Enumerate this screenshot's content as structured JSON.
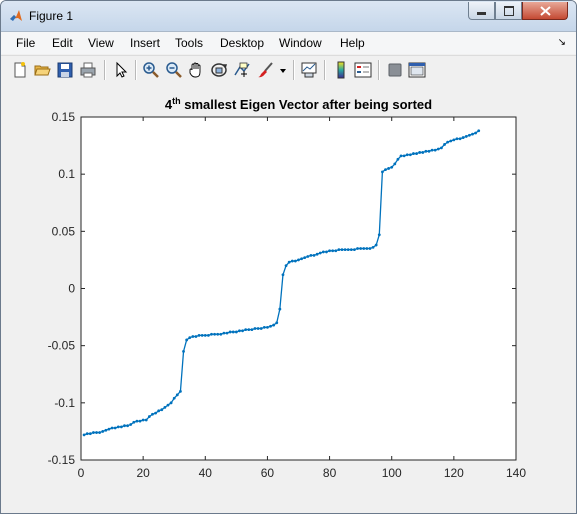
{
  "window": {
    "title": "Figure 1"
  },
  "menu": [
    "File",
    "Edit",
    "View",
    "Insert",
    "Tools",
    "Desktop",
    "Window",
    "Help"
  ],
  "toolbar": {
    "icons": [
      "new-figure-icon",
      "open-file-icon",
      "save-icon",
      "print-icon",
      "pointer-icon",
      "zoom-in-icon",
      "zoom-out-icon",
      "pan-hand-icon",
      "rotate-3d-icon",
      "data-cursor-icon",
      "brush-icon",
      "brush-dropdown-icon",
      "link-plot-icon",
      "colorbar-icon",
      "legend-icon",
      "hide-plot-tools-icon",
      "show-plot-tools-icon"
    ]
  },
  "chart_data": {
    "type": "line",
    "title_main": "4",
    "title_sup": "th",
    "title_rest": " smallest Eigen Vector after being sorted",
    "xlim": [
      0,
      140
    ],
    "ylim": [
      -0.15,
      0.15
    ],
    "xticks": [
      "0",
      "20",
      "40",
      "60",
      "80",
      "100",
      "120",
      "140"
    ],
    "yticks": [
      "0.15",
      "0.1",
      "0.05",
      "0",
      "-0.05",
      "-0.1",
      "-0.15"
    ],
    "xtick_values": [
      0,
      20,
      40,
      60,
      80,
      100,
      120,
      140
    ],
    "ytick_values": [
      0.15,
      0.1,
      0.05,
      0,
      -0.05,
      -0.1,
      -0.15
    ],
    "line_color": "#0072bd",
    "x": [
      1,
      2,
      3,
      4,
      5,
      6,
      7,
      8,
      9,
      10,
      11,
      12,
      13,
      14,
      15,
      16,
      17,
      18,
      19,
      20,
      21,
      22,
      23,
      24,
      25,
      26,
      27,
      28,
      29,
      30,
      31,
      32,
      33,
      34,
      35,
      36,
      37,
      38,
      39,
      40,
      41,
      42,
      43,
      44,
      45,
      46,
      47,
      48,
      49,
      50,
      51,
      52,
      53,
      54,
      55,
      56,
      57,
      58,
      59,
      60,
      61,
      62,
      63,
      64,
      65,
      66,
      67,
      68,
      69,
      70,
      71,
      72,
      73,
      74,
      75,
      76,
      77,
      78,
      79,
      80,
      81,
      82,
      83,
      84,
      85,
      86,
      87,
      88,
      89,
      90,
      91,
      92,
      93,
      94,
      95,
      96,
      97,
      98,
      99,
      100,
      101,
      102,
      103,
      104,
      105,
      106,
      107,
      108,
      109,
      110,
      111,
      112,
      113,
      114,
      115,
      116,
      117,
      118,
      119,
      120,
      121,
      122,
      123,
      124,
      125,
      126,
      127,
      128
    ],
    "y": [
      -0.128,
      -0.127,
      -0.127,
      -0.126,
      -0.126,
      -0.126,
      -0.125,
      -0.124,
      -0.123,
      -0.122,
      -0.122,
      -0.121,
      -0.121,
      -0.12,
      -0.12,
      -0.119,
      -0.117,
      -0.116,
      -0.116,
      -0.115,
      -0.115,
      -0.112,
      -0.11,
      -0.109,
      -0.107,
      -0.106,
      -0.104,
      -0.102,
      -0.1,
      -0.096,
      -0.093,
      -0.09,
      -0.055,
      -0.045,
      -0.043,
      -0.042,
      -0.042,
      -0.041,
      -0.041,
      -0.041,
      -0.041,
      -0.04,
      -0.04,
      -0.04,
      -0.04,
      -0.039,
      -0.039,
      -0.038,
      -0.038,
      -0.038,
      -0.037,
      -0.037,
      -0.036,
      -0.036,
      -0.036,
      -0.035,
      -0.035,
      -0.035,
      -0.034,
      -0.034,
      -0.033,
      -0.032,
      -0.03,
      -0.018,
      0.012,
      0.02,
      0.023,
      0.024,
      0.024,
      0.025,
      0.026,
      0.027,
      0.028,
      0.029,
      0.029,
      0.03,
      0.031,
      0.032,
      0.032,
      0.033,
      0.033,
      0.033,
      0.034,
      0.034,
      0.034,
      0.034,
      0.034,
      0.034,
      0.035,
      0.035,
      0.035,
      0.035,
      0.035,
      0.036,
      0.038,
      0.047,
      0.102,
      0.104,
      0.105,
      0.106,
      0.109,
      0.113,
      0.116,
      0.116,
      0.117,
      0.117,
      0.118,
      0.118,
      0.119,
      0.119,
      0.12,
      0.12,
      0.121,
      0.121,
      0.122,
      0.123,
      0.126,
      0.128,
      0.129,
      0.13,
      0.131,
      0.131,
      0.132,
      0.133,
      0.134,
      0.135,
      0.136,
      0.138
    ]
  }
}
